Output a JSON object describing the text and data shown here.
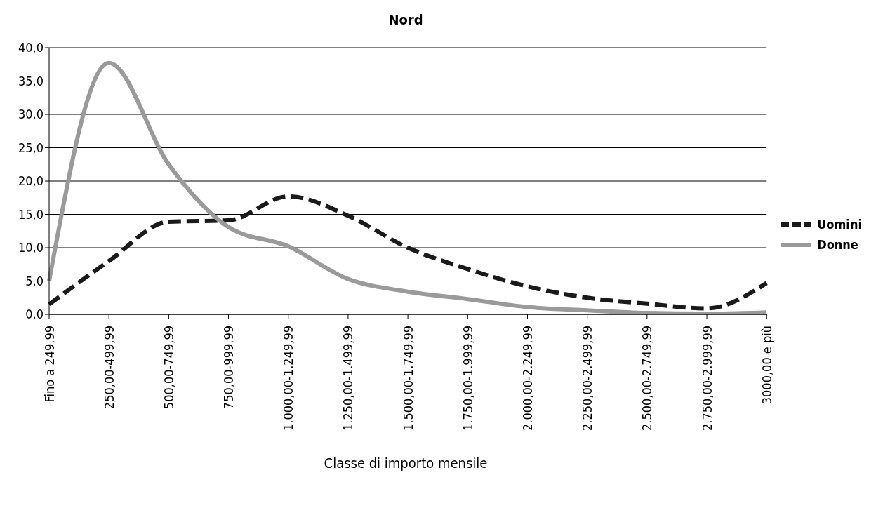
{
  "chart_data": {
    "type": "line",
    "title": "Nord",
    "xlabel": "Classe di importo mensile",
    "categories": [
      "Fino a 249,99",
      "250,00-499,99",
      "500,00-749,99",
      "750,00-999,99",
      "1.000,00-1.249,99",
      "1.250,00-1.499,99",
      "1.500,00-1.749,99",
      "1.750,00-1.999,99",
      "2.000,00-2.249,99",
      "2.250,00-2.499,99",
      "2.500,00-2.749,99",
      "2.750,00-2.999,99",
      "3000,00 e più"
    ],
    "series": [
      {
        "name": "Uomini",
        "color": "#1a1a1a",
        "line_style": "dashed",
        "values": [
          1.5,
          8.0,
          13.9,
          14.1,
          17.7,
          14.8,
          10.0,
          6.8,
          4.2,
          2.5,
          1.6,
          0.9,
          4.7
        ]
      },
      {
        "name": "Donne",
        "color": "#9a9a9a",
        "line_style": "solid",
        "values": [
          5.0,
          37.7,
          22.5,
          13.1,
          10.2,
          5.3,
          3.4,
          2.3,
          1.1,
          0.6,
          0.2,
          0.1,
          0.3
        ]
      }
    ],
    "ylim": [
      0,
      40
    ],
    "yticks": [
      {
        "value": 0,
        "label": "0,0"
      },
      {
        "value": 5,
        "label": "5,0"
      },
      {
        "value": 10,
        "label": "10,0"
      },
      {
        "value": 15,
        "label": "15,0"
      },
      {
        "value": 20,
        "label": "20,0"
      },
      {
        "value": 25,
        "label": "25,0"
      },
      {
        "value": 30,
        "label": "30,0"
      },
      {
        "value": 35,
        "label": "35,0"
      },
      {
        "value": 40,
        "label": "40,0"
      }
    ],
    "grid": "y",
    "legend": "right",
    "marker": "none"
  }
}
